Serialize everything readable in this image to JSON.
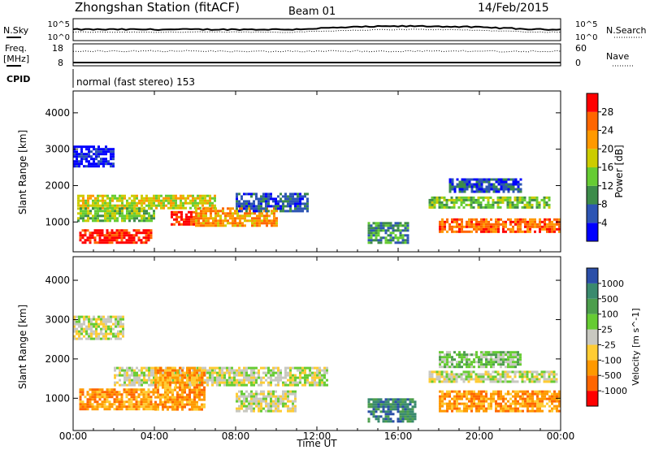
{
  "header": {
    "station": "Zhongshan Station (fitACF)",
    "beam": "Beam 01",
    "date": "14/Feb/2015"
  },
  "noise_panel": {
    "left_label": "N.Sky",
    "right_label": "N.Search",
    "left_ticks": [
      "10^5",
      "10^0"
    ],
    "right_ticks": [
      "10^5",
      "10^0"
    ]
  },
  "freq_panel": {
    "left_label_1": "Freq.",
    "left_label_2": "[MHz]",
    "right_label": "Nave",
    "left_ticks": [
      "18",
      "8"
    ],
    "right_ticks": [
      "60",
      "0"
    ]
  },
  "cpid": {
    "label": "CPID",
    "text": "normal (fast stereo) 153"
  },
  "chart_data": [
    {
      "type": "heatmap",
      "title": "",
      "xlabel": "Time UT",
      "ylabel": "Slant Range [km]",
      "x_ticks": [
        "00:00",
        "04:00",
        "08:00",
        "12:00",
        "16:00",
        "20:00",
        "00:00"
      ],
      "xlim_hours": [
        0,
        24
      ],
      "y_ticks": [
        "1000",
        "2000",
        "3000",
        "4000"
      ],
      "ylim": [
        180,
        4600
      ],
      "colorbar": {
        "label": "Power [dB]",
        "ticks": [
          "4",
          "8",
          "12",
          "16",
          "20",
          "24",
          "28"
        ],
        "colors": [
          "#0000ff",
          "#2d55b4",
          "#3d8c4a",
          "#66cc33",
          "#cccc00",
          "#ff9900",
          "#ff6600",
          "#ff0000"
        ]
      },
      "regions": [
        {
          "t0": 0.0,
          "t1": 2.0,
          "r0": 2500,
          "r1": 3100,
          "level": 0
        },
        {
          "t0": 0.2,
          "t1": 7.0,
          "r0": 1400,
          "r1": 1750,
          "level": 4
        },
        {
          "t0": 0.2,
          "t1": 4.0,
          "r0": 1050,
          "r1": 1400,
          "level": 3
        },
        {
          "t0": 0.3,
          "t1": 3.8,
          "r0": 450,
          "r1": 800,
          "level": 7
        },
        {
          "t0": 4.8,
          "t1": 6.0,
          "r0": 950,
          "r1": 1300,
          "level": 7
        },
        {
          "t0": 6.0,
          "t1": 10.0,
          "r0": 900,
          "r1": 1400,
          "level": 5
        },
        {
          "t0": 8.0,
          "t1": 11.5,
          "r0": 1300,
          "r1": 1800,
          "level": 1
        },
        {
          "t0": 14.5,
          "t1": 16.5,
          "r0": 400,
          "r1": 1000,
          "level": 2
        },
        {
          "t0": 17.5,
          "t1": 23.5,
          "r0": 1400,
          "r1": 1700,
          "level": 3
        },
        {
          "t0": 18.0,
          "t1": 24.0,
          "r0": 700,
          "r1": 1100,
          "level": 6
        },
        {
          "t0": 18.5,
          "t1": 22.0,
          "r0": 1800,
          "r1": 2200,
          "level": 1
        }
      ]
    },
    {
      "type": "heatmap",
      "title": "",
      "xlabel": "Time UT",
      "ylabel": "Slant Range [km]",
      "x_ticks": [
        "00:00",
        "04:00",
        "08:00",
        "12:00",
        "16:00",
        "20:00",
        "00:00"
      ],
      "xlim_hours": [
        0,
        24
      ],
      "y_ticks": [
        "1000",
        "2000",
        "3000",
        "4000"
      ],
      "ylim": [
        180,
        4600
      ],
      "colorbar": {
        "label": "Velocity [m s^-1]",
        "ticks": [
          "1000",
          "500",
          "100",
          "25",
          "-25",
          "-100",
          "-500",
          "-1000"
        ],
        "colors": [
          "#2b4fa8",
          "#3a8a6e",
          "#4c9e4c",
          "#66cc33",
          "#c8c8c0",
          "#ffcc33",
          "#ff9900",
          "#ff6600",
          "#ff0000"
        ]
      },
      "regions": [
        {
          "t0": 0.0,
          "t1": 2.5,
          "r0": 2500,
          "r1": 3100,
          "level": 4
        },
        {
          "t0": 2.0,
          "t1": 12.5,
          "r0": 1350,
          "r1": 1800,
          "level": 4
        },
        {
          "t0": 0.3,
          "t1": 4.0,
          "r0": 700,
          "r1": 1250,
          "level": 6
        },
        {
          "t0": 4.0,
          "t1": 6.5,
          "r0": 700,
          "r1": 1800,
          "level": 6
        },
        {
          "t0": 8.0,
          "t1": 11.0,
          "r0": 700,
          "r1": 1200,
          "level": 4
        },
        {
          "t0": 14.5,
          "t1": 16.8,
          "r0": 400,
          "r1": 1000,
          "level": 1
        },
        {
          "t0": 17.5,
          "t1": 23.8,
          "r0": 1400,
          "r1": 1700,
          "level": 4
        },
        {
          "t0": 18.0,
          "t1": 24.0,
          "r0": 700,
          "r1": 1200,
          "level": 6
        },
        {
          "t0": 18.0,
          "t1": 22.0,
          "r0": 1800,
          "r1": 2200,
          "level": 3
        }
      ]
    }
  ]
}
